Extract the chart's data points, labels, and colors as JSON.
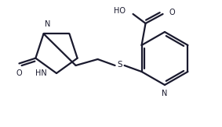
{
  "bg_color": "#ffffff",
  "line_color": "#1a1a2e",
  "lw": 1.6,
  "fs": 7.0,
  "fig_w": 2.83,
  "fig_h": 1.63,
  "dpi": 100,
  "xlim": [
    0,
    283
  ],
  "ylim": [
    0,
    163
  ]
}
